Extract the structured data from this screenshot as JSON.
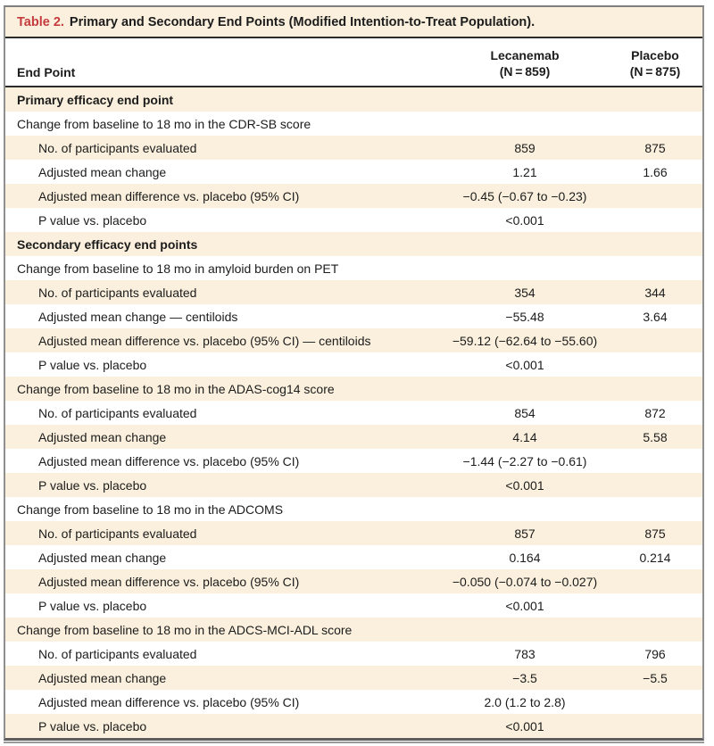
{
  "table": {
    "title_label": "Table 2.",
    "title_text": "Primary and Secondary End Points (Modified Intention-to-Treat Population).",
    "columns": {
      "endpoint": "End Point",
      "lecanemab_line1": "Lecanemab",
      "lecanemab_line2": "(N = 859)",
      "placebo_line1": "Placebo",
      "placebo_line2": "(N = 875)"
    },
    "colors": {
      "accent_red": "#c53b3e",
      "row_cream": "#faf0dd",
      "rule_dark": "#2b2b2b",
      "border_gray": "#8f8f8f"
    },
    "rows": [
      {
        "style": "section",
        "label": "Primary efficacy end point",
        "lecanemab": "",
        "placebo": ""
      },
      {
        "style": "plain",
        "label": "Change from baseline to 18 mo in the CDR-SB score",
        "lecanemab": "",
        "placebo": ""
      },
      {
        "style": "indent",
        "label": "No. of participants evaluated",
        "lecanemab": "859",
        "placebo": "875"
      },
      {
        "style": "indent",
        "label": "Adjusted mean change",
        "lecanemab": "1.21",
        "placebo": "1.66"
      },
      {
        "style": "indent",
        "label": "Adjusted mean difference vs. placebo (95% CI)",
        "lecanemab": "−0.45 (−0.67 to −0.23)",
        "placebo": ""
      },
      {
        "style": "indent",
        "label": "P value vs. placebo",
        "lecanemab": "<0.001",
        "placebo": ""
      },
      {
        "style": "section",
        "label": "Secondary efficacy end points",
        "lecanemab": "",
        "placebo": ""
      },
      {
        "style": "plain",
        "label": "Change from baseline to 18 mo in amyloid burden on PET",
        "lecanemab": "",
        "placebo": ""
      },
      {
        "style": "indent",
        "label": "No. of participants evaluated",
        "lecanemab": "354",
        "placebo": "344"
      },
      {
        "style": "indent",
        "label": "Adjusted mean change — centiloids",
        "lecanemab": "−55.48",
        "placebo": "3.64"
      },
      {
        "style": "indent",
        "label": "Adjusted mean difference vs. placebo (95% CI) — centiloids",
        "lecanemab": "−59.12 (−62.64 to −55.60)",
        "placebo": ""
      },
      {
        "style": "indent",
        "label": "P value vs. placebo",
        "lecanemab": "<0.001",
        "placebo": ""
      },
      {
        "style": "plain",
        "label": "Change from baseline to 18 mo in the ADAS-cog14 score",
        "lecanemab": "",
        "placebo": ""
      },
      {
        "style": "indent",
        "label": "No. of participants evaluated",
        "lecanemab": "854",
        "placebo": "872"
      },
      {
        "style": "indent",
        "label": "Adjusted mean change",
        "lecanemab": "4.14",
        "placebo": "5.58"
      },
      {
        "style": "indent",
        "label": "Adjusted mean difference vs. placebo (95% CI)",
        "lecanemab": "−1.44 (−2.27 to −0.61)",
        "placebo": ""
      },
      {
        "style": "indent",
        "label": "P value vs. placebo",
        "lecanemab": "<0.001",
        "placebo": ""
      },
      {
        "style": "plain",
        "label": "Change from baseline to 18 mo in the ADCOMS",
        "lecanemab": "",
        "placebo": ""
      },
      {
        "style": "indent",
        "label": "No. of participants evaluated",
        "lecanemab": "857",
        "placebo": "875"
      },
      {
        "style": "indent",
        "label": "Adjusted mean change",
        "lecanemab": "0.164",
        "placebo": "0.214"
      },
      {
        "style": "indent",
        "label": "Adjusted mean difference vs. placebo (95% CI)",
        "lecanemab": "−0.050 (−0.074 to −0.027)",
        "placebo": ""
      },
      {
        "style": "indent",
        "label": "P value vs. placebo",
        "lecanemab": "<0.001",
        "placebo": ""
      },
      {
        "style": "plain",
        "label": "Change from baseline to 18 mo in the ADCS-MCI-ADL score",
        "lecanemab": "",
        "placebo": ""
      },
      {
        "style": "indent",
        "label": "No. of participants evaluated",
        "lecanemab": "783",
        "placebo": "796"
      },
      {
        "style": "indent",
        "label": "Adjusted mean change",
        "lecanemab": "−3.5",
        "placebo": "−5.5"
      },
      {
        "style": "indent",
        "label": "Adjusted mean difference vs. placebo (95% CI)",
        "lecanemab": "2.0 (1.2 to 2.8)",
        "placebo": ""
      },
      {
        "style": "indent",
        "label": "P value vs. placebo",
        "lecanemab": "<0.001",
        "placebo": ""
      }
    ]
  }
}
